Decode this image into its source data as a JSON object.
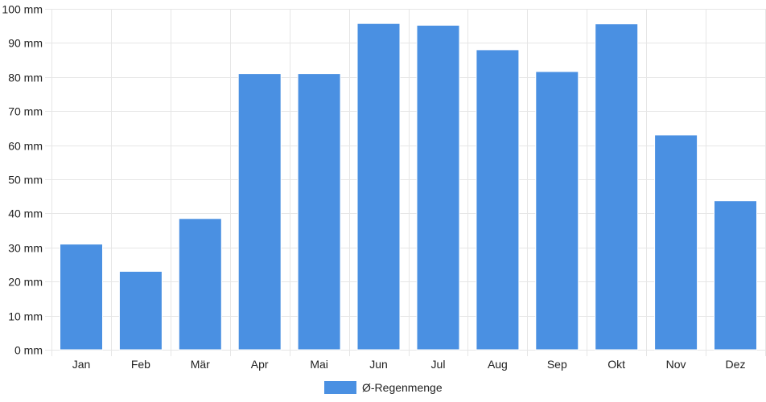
{
  "chart_data": {
    "type": "bar",
    "categories": [
      "Jan",
      "Feb",
      "Mär",
      "Apr",
      "Mai",
      "Jun",
      "Jul",
      "Aug",
      "Sep",
      "Okt",
      "Nov",
      "Dez"
    ],
    "series": [
      {
        "name": "Ø-Regenmenge",
        "values": [
          31,
          23,
          38.5,
          81,
          81,
          95.7,
          95.2,
          88,
          81.6,
          95.6,
          63,
          43.7
        ],
        "color": "#4a90e2"
      }
    ],
    "ylim": [
      0,
      100
    ],
    "yticks": [
      0,
      10,
      20,
      30,
      40,
      50,
      60,
      70,
      80,
      90,
      100
    ],
    "y_unit_suffix": " mm",
    "grid": true,
    "legend_position": "bottom"
  },
  "colors": {
    "bar": "#4a90e2",
    "bar_border": "#ffffff",
    "grid": "#e6e6e6",
    "axis": "#cccccc"
  }
}
